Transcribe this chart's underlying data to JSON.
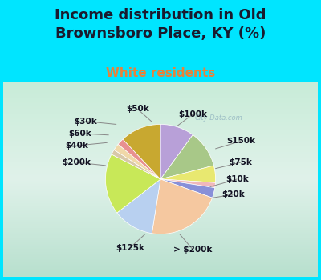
{
  "title": "Income distribution in Old\nBrownsboro Place, KY (%)",
  "subtitle": "White residents",
  "title_color": "#1a1a2e",
  "subtitle_color": "#e8823a",
  "background_color": "#00e5ff",
  "watermark": "City-Data.com",
  "labels": [
    "$100k",
    "$150k",
    "$75k",
    "$10k",
    "$20k",
    "> $200k",
    "$125k",
    "$200k",
    "$40k",
    "$60k",
    "$30k",
    "$50k"
  ],
  "sizes": [
    10,
    11,
    5,
    1.5,
    3,
    22,
    12,
    18,
    1.5,
    2,
    2,
    12
  ],
  "colors": [
    "#b8a0d8",
    "#a8c888",
    "#e8e870",
    "#f0b8bc",
    "#8890d8",
    "#f5c8a0",
    "#b8d0f0",
    "#c8e858",
    "#d8c8a8",
    "#f0d8a8",
    "#e89090",
    "#c8a830"
  ],
  "startangle": 90,
  "title_fontsize": 13,
  "subtitle_fontsize": 11,
  "label_fontsize": 7.5
}
